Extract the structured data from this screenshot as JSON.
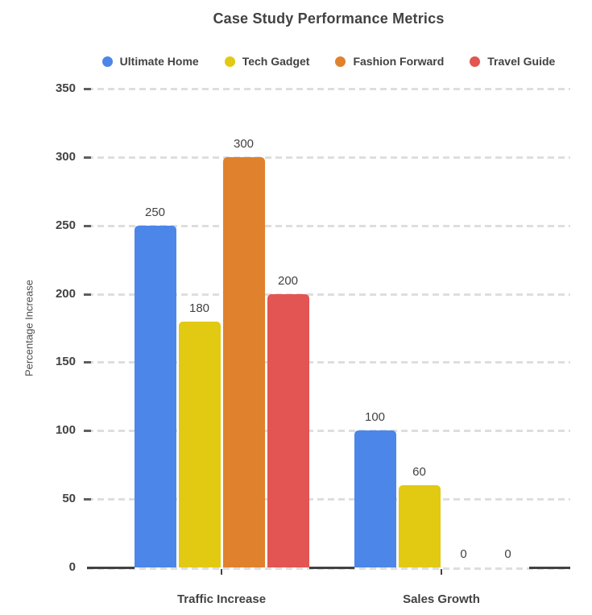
{
  "chart_data": {
    "type": "bar",
    "title": "Case Study Performance Metrics",
    "xlabel": "",
    "ylabel": "Percentage Increase",
    "categories": [
      "Traffic Increase",
      "Sales Growth"
    ],
    "series": [
      {
        "name": "Ultimate Home",
        "color": "#4C86E8",
        "values": [
          250,
          100
        ]
      },
      {
        "name": "Tech Gadget",
        "color": "#E2C912",
        "values": [
          180,
          60
        ]
      },
      {
        "name": "Fashion Forward",
        "color": "#E0812E",
        "values": [
          300,
          0
        ]
      },
      {
        "name": "Travel Guide",
        "color": "#E25552",
        "values": [
          200,
          0
        ]
      }
    ],
    "ylim": [
      0,
      350
    ],
    "yticks": [
      0,
      50,
      100,
      150,
      200,
      250,
      300,
      350
    ],
    "grid": "dashed horizontal",
    "legend_position": "top",
    "bar_value_labels": true,
    "text_color": "#424242",
    "gridline_color": "#dedede",
    "axis_color": "#424242"
  }
}
